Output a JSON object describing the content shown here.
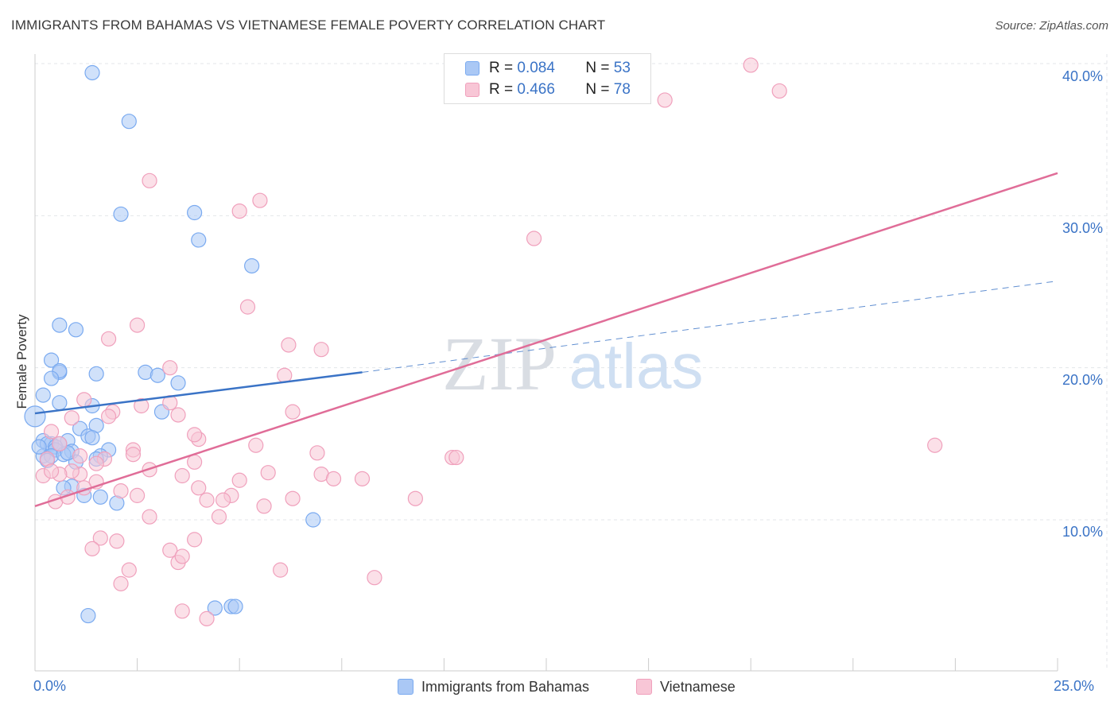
{
  "title": "IMMIGRANTS FROM BAHAMAS VS VIETNAMESE FEMALE POVERTY CORRELATION CHART",
  "source": "Source: ZipAtlas.com",
  "watermark": {
    "zip": "ZIP",
    "atlas": "atlas"
  },
  "legend": {
    "rows": [
      {
        "r_label": "R = ",
        "r_value": "0.084",
        "n_label": "N = ",
        "n_value": "53"
      },
      {
        "r_label": "R = ",
        "r_value": "0.466",
        "n_label": "N = ",
        "n_value": "78"
      }
    ]
  },
  "chart_data": {
    "type": "scatter",
    "title": "IMMIGRANTS FROM BAHAMAS VS VIETNAMESE FEMALE POVERTY CORRELATION CHART",
    "xlabel": "",
    "ylabel": "Female Poverty",
    "xlim": [
      0,
      25
    ],
    "ylim": [
      0,
      42
    ],
    "x_tick_labels": [
      "0.0%",
      "25.0%"
    ],
    "y_ticks": [
      10,
      20,
      30,
      40
    ],
    "y_tick_labels": [
      "10.0%",
      "20.0%",
      "30.0%",
      "40.0%"
    ],
    "grid": true,
    "legend_placement": "top-center",
    "series": [
      {
        "name": "Immigrants from Bahamas",
        "color": "#7aaaf0",
        "fill": "#aac8f5",
        "line_color": "#3a73c6",
        "r": 0.084,
        "n": 53,
        "trend": {
          "x": [
            0,
            8
          ],
          "y": [
            17.0,
            19.7
          ]
        },
        "trend_extension": {
          "x": [
            8,
            25
          ],
          "y": [
            19.7,
            25.7
          ]
        },
        "x": [
          1.4,
          2.3,
          2.1,
          4.0,
          3.9,
          5.3,
          0.6,
          1.0,
          0.4,
          0.6,
          0.6,
          1.5,
          0.4,
          0.2,
          2.7,
          3.0,
          3.5,
          3.1,
          1.4,
          0.6,
          0.2,
          0.4,
          1.1,
          1.5,
          1.3,
          0.8,
          0.3,
          0.5,
          0.5,
          0.9,
          1.8,
          1.6,
          1.5,
          1.0,
          0.2,
          0.0,
          0.4,
          0.7,
          0.1,
          0.3,
          0.9,
          1.2,
          1.6,
          2.0,
          1.4,
          0.8,
          0.6,
          0.7,
          6.8,
          4.4,
          4.8,
          4.9,
          1.3
        ],
        "y": [
          39.4,
          36.2,
          30.1,
          28.4,
          30.2,
          26.7,
          22.8,
          22.5,
          20.5,
          19.7,
          19.8,
          19.6,
          19.3,
          18.2,
          19.7,
          19.5,
          19.0,
          17.1,
          17.5,
          17.7,
          15.2,
          15.0,
          16.0,
          16.2,
          15.5,
          15.2,
          15.0,
          14.8,
          14.6,
          14.5,
          14.6,
          14.2,
          14.0,
          13.8,
          14.2,
          16.8,
          14.2,
          14.3,
          14.8,
          13.9,
          12.2,
          11.6,
          11.5,
          11.1,
          15.4,
          14.4,
          15.0,
          12.1,
          10.0,
          4.2,
          4.3,
          4.3,
          3.7
        ]
      },
      {
        "name": "Vietnamese",
        "color": "#f0a0bc",
        "fill": "#f8c6d6",
        "line_color": "#e06d98",
        "r": 0.466,
        "n": 78,
        "trend": {
          "x": [
            0,
            25
          ],
          "y": [
            10.9,
            32.8
          ]
        },
        "x": [
          17.5,
          15.4,
          18.2,
          12.2,
          2.8,
          5.0,
          5.5,
          5.2,
          6.2,
          6.1,
          6.3,
          7.0,
          3.3,
          1.8,
          2.5,
          2.4,
          3.5,
          4.0,
          3.9,
          2.4,
          1.7,
          2.8,
          3.6,
          0.4,
          0.6,
          0.9,
          1.2,
          1.9,
          2.6,
          3.3,
          5.4,
          5.7,
          5.0,
          4.8,
          4.0,
          3.9,
          5.6,
          4.6,
          6.3,
          7.0,
          7.3,
          6.9,
          8.0,
          9.3,
          10.2,
          10.3,
          2.1,
          2.5,
          1.8,
          1.5,
          1.1,
          0.9,
          1.6,
          2.0,
          2.8,
          3.3,
          3.9,
          4.5,
          4.2,
          1.5,
          1.4,
          2.3,
          2.1,
          0.6,
          0.2,
          0.3,
          0.4,
          0.5,
          0.8,
          1.1,
          1.2,
          22.0,
          8.3,
          6.0,
          3.5,
          3.6,
          4.2,
          3.6
        ],
        "y": [
          39.9,
          37.6,
          38.2,
          28.5,
          32.3,
          30.3,
          31.0,
          24.0,
          21.5,
          19.5,
          17.1,
          21.2,
          20.0,
          21.9,
          22.8,
          14.6,
          16.9,
          15.3,
          15.6,
          14.3,
          14.0,
          13.3,
          12.9,
          15.8,
          15.0,
          16.7,
          17.9,
          17.1,
          17.5,
          17.7,
          14.9,
          13.1,
          12.6,
          11.6,
          12.1,
          13.8,
          10.9,
          11.3,
          11.4,
          13.0,
          12.7,
          14.4,
          12.7,
          11.4,
          14.1,
          14.1,
          11.9,
          11.6,
          16.8,
          13.7,
          13.0,
          13.2,
          8.8,
          8.6,
          10.2,
          8.0,
          8.7,
          10.2,
          11.3,
          12.5,
          8.1,
          6.7,
          5.8,
          13.0,
          12.9,
          14.0,
          13.2,
          11.2,
          11.5,
          14.2,
          12.1,
          14.9,
          6.2,
          6.7,
          7.2,
          4.0,
          3.5,
          7.6
        ]
      }
    ]
  },
  "bottom_legend": [
    {
      "label": "Immigrants from Bahamas"
    },
    {
      "label": "Vietnamese"
    }
  ]
}
